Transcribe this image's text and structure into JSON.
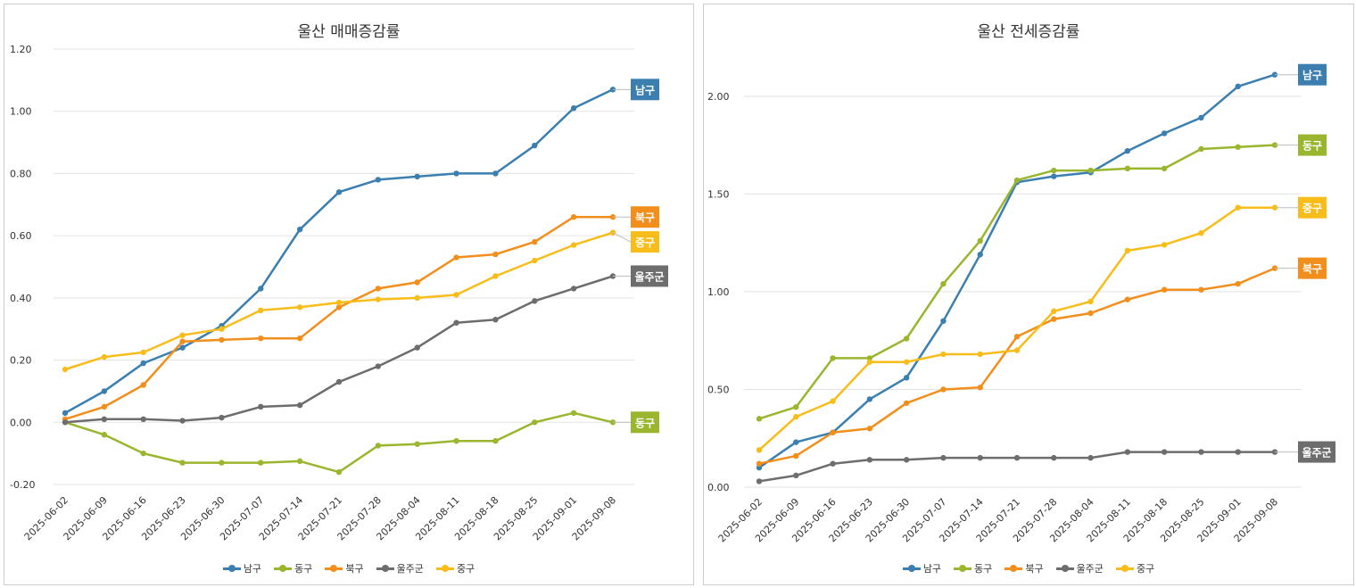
{
  "chart_data": [
    {
      "type": "line",
      "title": "울산 매매증감률",
      "xlabel": "",
      "ylabel": "",
      "ylim": [
        -0.2,
        1.2
      ],
      "ytick_step": 0.2,
      "yticks": [
        "-0.20",
        "0.00",
        "0.20",
        "0.40",
        "0.60",
        "0.80",
        "1.00",
        "1.20"
      ],
      "grid": true,
      "legend": "bottom",
      "x": [
        "2025-06-02",
        "2025-06-09",
        "2025-06-16",
        "2025-06-23",
        "2025-06-30",
        "2025-07-07",
        "2025-07-14",
        "2025-07-21",
        "2025-07-28",
        "2025-08-04",
        "2025-08-11",
        "2025-08-18",
        "2025-08-25",
        "2025-09-01",
        "2025-09-08"
      ],
      "series": [
        {
          "name": "남구",
          "color": "#3a7fb0",
          "values": [
            0.03,
            0.1,
            0.19,
            0.24,
            0.31,
            0.43,
            0.62,
            0.74,
            0.78,
            0.79,
            0.8,
            0.8,
            0.89,
            1.01,
            1.07
          ]
        },
        {
          "name": "동구",
          "color": "#99b62e",
          "values": [
            0.0,
            -0.04,
            -0.1,
            -0.13,
            -0.13,
            -0.13,
            -0.125,
            -0.16,
            -0.075,
            -0.07,
            -0.06,
            -0.06,
            0.0,
            0.03,
            0.0
          ]
        },
        {
          "name": "북구",
          "color": "#f28e1c",
          "values": [
            0.01,
            0.05,
            0.12,
            0.26,
            0.265,
            0.27,
            0.27,
            0.37,
            0.43,
            0.45,
            0.53,
            0.54,
            0.58,
            0.66,
            0.66
          ]
        },
        {
          "name": "울주군",
          "color": "#6d6d6d",
          "values": [
            0.0,
            0.01,
            0.01,
            0.005,
            0.015,
            0.05,
            0.055,
            0.13,
            0.18,
            0.24,
            0.32,
            0.33,
            0.39,
            0.43,
            0.47
          ]
        },
        {
          "name": "중구",
          "color": "#f8bd1a",
          "values": [
            0.17,
            0.21,
            0.225,
            0.28,
            0.3,
            0.36,
            0.37,
            0.385,
            0.395,
            0.4,
            0.41,
            0.47,
            0.52,
            0.57,
            0.61
          ]
        }
      ],
      "end_labels": [
        {
          "series": "남구",
          "label": "남구",
          "at": 1.07
        },
        {
          "series": "북구",
          "label": "북구",
          "at": 0.66
        },
        {
          "series": "중구",
          "label": "중구",
          "at": 0.58
        },
        {
          "series": "울주군",
          "label": "울주군",
          "at": 0.47
        },
        {
          "series": "동구",
          "label": "동구",
          "at": 0.0
        }
      ]
    },
    {
      "type": "line",
      "title": "울산 전세증감률",
      "xlabel": "",
      "ylabel": "",
      "ylim": [
        0,
        2.2
      ],
      "ytick_step": 0.5,
      "yticks": [
        "0.00",
        "0.50",
        "1.00",
        "1.50",
        "2.00"
      ],
      "grid": true,
      "legend": "bottom",
      "x": [
        "2025-06-02",
        "2025-06-09",
        "2025-06-16",
        "2025-06-23",
        "2025-06-30",
        "2025-07-07",
        "2025-07-14",
        "2025-07-21",
        "2025-07-28",
        "2025-08-04",
        "2025-08-11",
        "2025-08-18",
        "2025-08-25",
        "2025-09-01",
        "2025-09-08"
      ],
      "series": [
        {
          "name": "남구",
          "color": "#3a7fb0",
          "values": [
            0.1,
            0.23,
            0.28,
            0.45,
            0.56,
            0.85,
            1.19,
            1.56,
            1.59,
            1.61,
            1.72,
            1.81,
            1.89,
            2.05,
            2.11
          ]
        },
        {
          "name": "동구",
          "color": "#99b62e",
          "values": [
            0.35,
            0.41,
            0.66,
            0.66,
            0.76,
            1.04,
            1.26,
            1.57,
            1.62,
            1.62,
            1.63,
            1.63,
            1.73,
            1.74,
            1.75
          ]
        },
        {
          "name": "북구",
          "color": "#f28e1c",
          "values": [
            0.12,
            0.16,
            0.28,
            0.3,
            0.43,
            0.5,
            0.51,
            0.77,
            0.86,
            0.89,
            0.96,
            1.01,
            1.01,
            1.04,
            1.12
          ]
        },
        {
          "name": "울주군",
          "color": "#6d6d6d",
          "values": [
            0.03,
            0.06,
            0.12,
            0.14,
            0.14,
            0.15,
            0.15,
            0.15,
            0.15,
            0.15,
            0.18,
            0.18,
            0.18,
            0.18,
            0.18
          ]
        },
        {
          "name": "중구",
          "color": "#f8bd1a",
          "values": [
            0.19,
            0.36,
            0.44,
            0.64,
            0.64,
            0.68,
            0.68,
            0.7,
            0.9,
            0.95,
            1.21,
            1.24,
            1.3,
            1.43,
            1.43
          ]
        }
      ],
      "end_labels": [
        {
          "series": "남구",
          "label": "남구",
          "at": 2.11
        },
        {
          "series": "동구",
          "label": "동구",
          "at": 1.75
        },
        {
          "series": "중구",
          "label": "중구",
          "at": 1.43
        },
        {
          "series": "북구",
          "label": "북구",
          "at": 1.12
        },
        {
          "series": "울주군",
          "label": "울주군",
          "at": 0.18
        }
      ]
    }
  ]
}
